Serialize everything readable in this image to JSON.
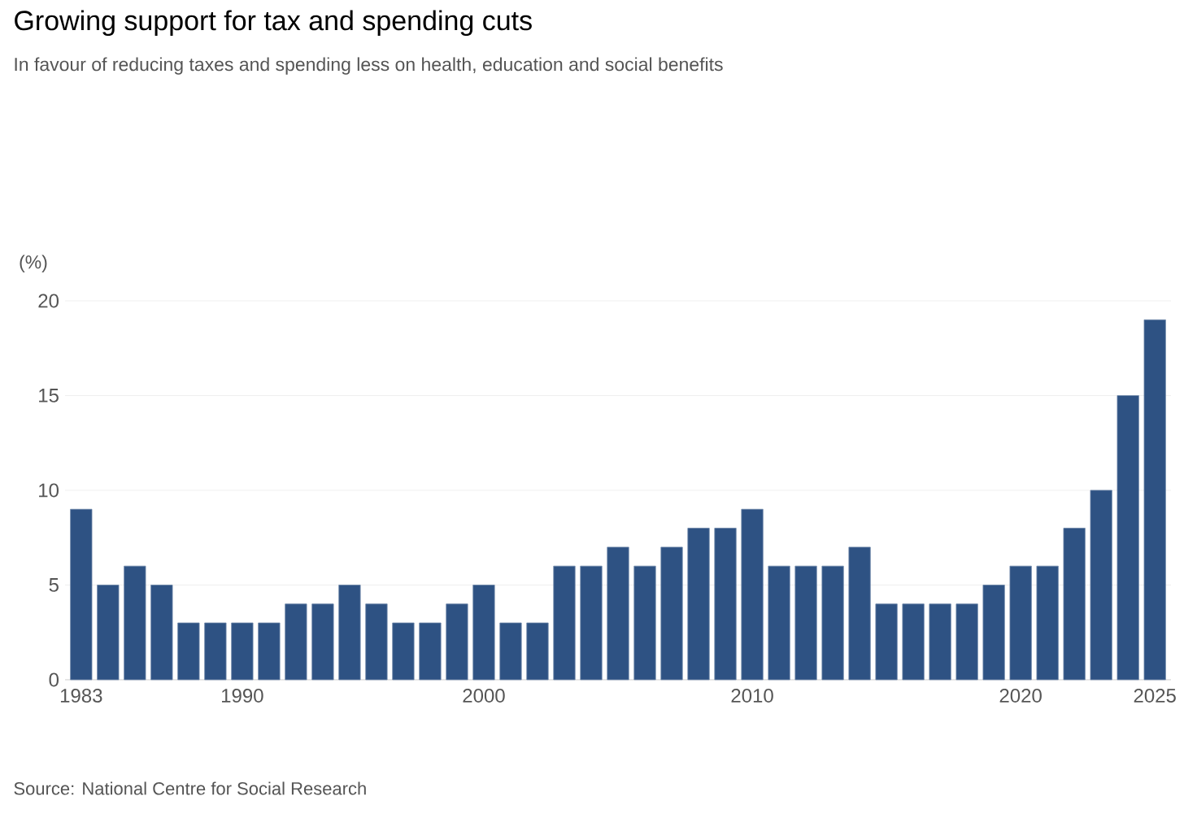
{
  "chart_data": {
    "type": "bar",
    "title": "Growing support for tax and spending cuts",
    "subtitle": "In favour of reducing taxes and spending less on health, education and social benefits",
    "ylabel": "(%)",
    "categories": [
      "1983",
      null,
      null,
      null,
      null,
      null,
      "1990",
      null,
      null,
      null,
      null,
      null,
      null,
      null,
      null,
      "2000",
      null,
      null,
      null,
      null,
      null,
      null,
      null,
      null,
      null,
      "2010",
      null,
      null,
      null,
      null,
      null,
      null,
      null,
      null,
      null,
      "2020",
      null,
      null,
      null,
      null,
      "2025"
    ],
    "values": [
      9,
      5,
      6,
      5,
      3,
      3,
      3,
      3,
      4,
      4,
      5,
      4,
      3,
      3,
      4,
      5,
      3,
      3,
      6,
      6,
      7,
      6,
      7,
      8,
      8,
      9,
      6,
      6,
      6,
      7,
      4,
      4,
      4,
      4,
      5,
      6,
      6,
      8,
      10,
      15,
      19
    ],
    "color": "#2e5283",
    "ylim": [
      0,
      20
    ],
    "yticks": [
      0,
      5,
      10,
      15,
      20
    ],
    "grid": "y",
    "annotations": [
      "Source: National Centre for Social Research"
    ]
  }
}
